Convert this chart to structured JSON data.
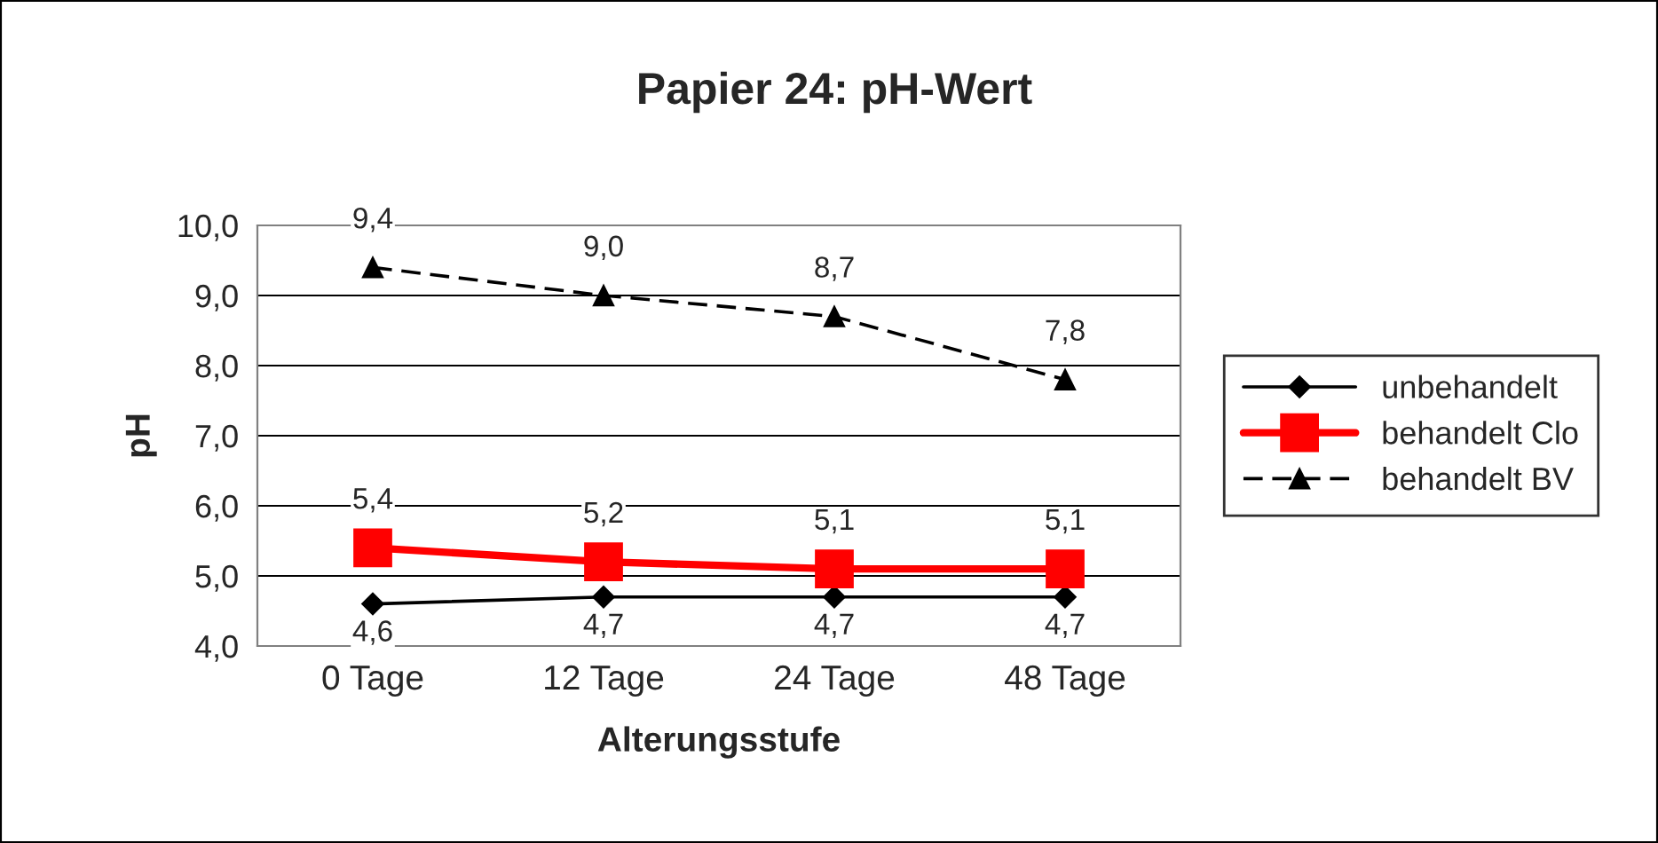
{
  "chart_data": {
    "type": "line",
    "title": "Papier 24: pH-Wert",
    "xlabel": "Alterungsstufe",
    "ylabel": "pH",
    "categories": [
      "0 Tage",
      "12 Tage",
      "24 Tage",
      "48 Tage"
    ],
    "series": [
      {
        "name": "unbehandelt",
        "color": "#000000",
        "values": [
          4.6,
          4.7,
          4.7,
          4.7
        ],
        "value_labels": [
          "4,6",
          "4,7",
          "4,7",
          "4,7"
        ],
        "marker": "diamond",
        "line_style": "solid"
      },
      {
        "name": "behandelt Clo",
        "color": "#ff0000",
        "values": [
          5.4,
          5.2,
          5.1,
          5.1
        ],
        "value_labels": [
          "5,4",
          "5,2",
          "5,1",
          "5,1"
        ],
        "marker": "square",
        "line_style": "solid"
      },
      {
        "name": "behandelt BV",
        "color": "#000000",
        "values": [
          9.4,
          9.0,
          8.7,
          7.8
        ],
        "value_labels": [
          "9,4",
          "9,0",
          "8,7",
          "7,8"
        ],
        "marker": "triangle",
        "line_style": "dashed"
      }
    ],
    "ylim": [
      4,
      10
    ],
    "yticks": [
      {
        "value": 4,
        "label": "4,0"
      },
      {
        "value": 5,
        "label": "5,0"
      },
      {
        "value": 6,
        "label": "6,0"
      },
      {
        "value": 7,
        "label": "7,0"
      },
      {
        "value": 8,
        "label": "8,0"
      },
      {
        "value": 9,
        "label": "9,0"
      },
      {
        "value": 10,
        "label": "10,0"
      }
    ],
    "grid": "y",
    "legend": "right"
  }
}
